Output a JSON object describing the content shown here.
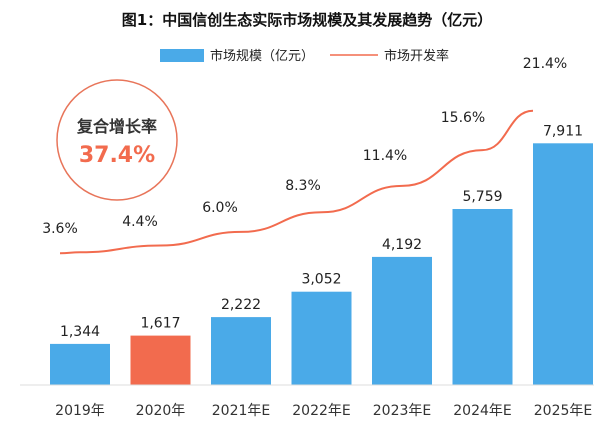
{
  "chart_data": {
    "type": "bar",
    "title": "图1：中国信创生态实际市场规模及其发展趋势（亿元）",
    "categories": [
      "2019年",
      "2020年",
      "2021年E",
      "2022年E",
      "2023年E",
      "2024年E",
      "2025年E"
    ],
    "series": [
      {
        "name": "市场规模（亿元）",
        "type": "bar",
        "values": [
          1344,
          1617,
          2222,
          3052,
          4192,
          5759,
          7911
        ],
        "labels": [
          "1,344",
          "1,617",
          "2,222",
          "3,052",
          "4,192",
          "5,759",
          "7,911"
        ],
        "color": "#4aaae8",
        "highlight_index": 1,
        "highlight_color": "#f26b4e"
      },
      {
        "name": "市场开发率",
        "type": "line",
        "values": [
          3.6,
          4.4,
          6.0,
          8.3,
          11.4,
          15.6,
          21.4
        ],
        "labels": [
          "3.6%",
          "4.4%",
          "6.0%",
          "8.3%",
          "11.4%",
          "15.6%",
          "21.4%"
        ],
        "color": "#f26b4e"
      }
    ],
    "ylim": [
      0,
      9000
    ],
    "rate_ylim": [
      0,
      25
    ],
    "grid": false,
    "legend": "top-center",
    "annotation": {
      "title": "复合增长率",
      "value": "37.4%",
      "value_color": "#f26b4e",
      "ring_color": "#e8755a"
    }
  }
}
